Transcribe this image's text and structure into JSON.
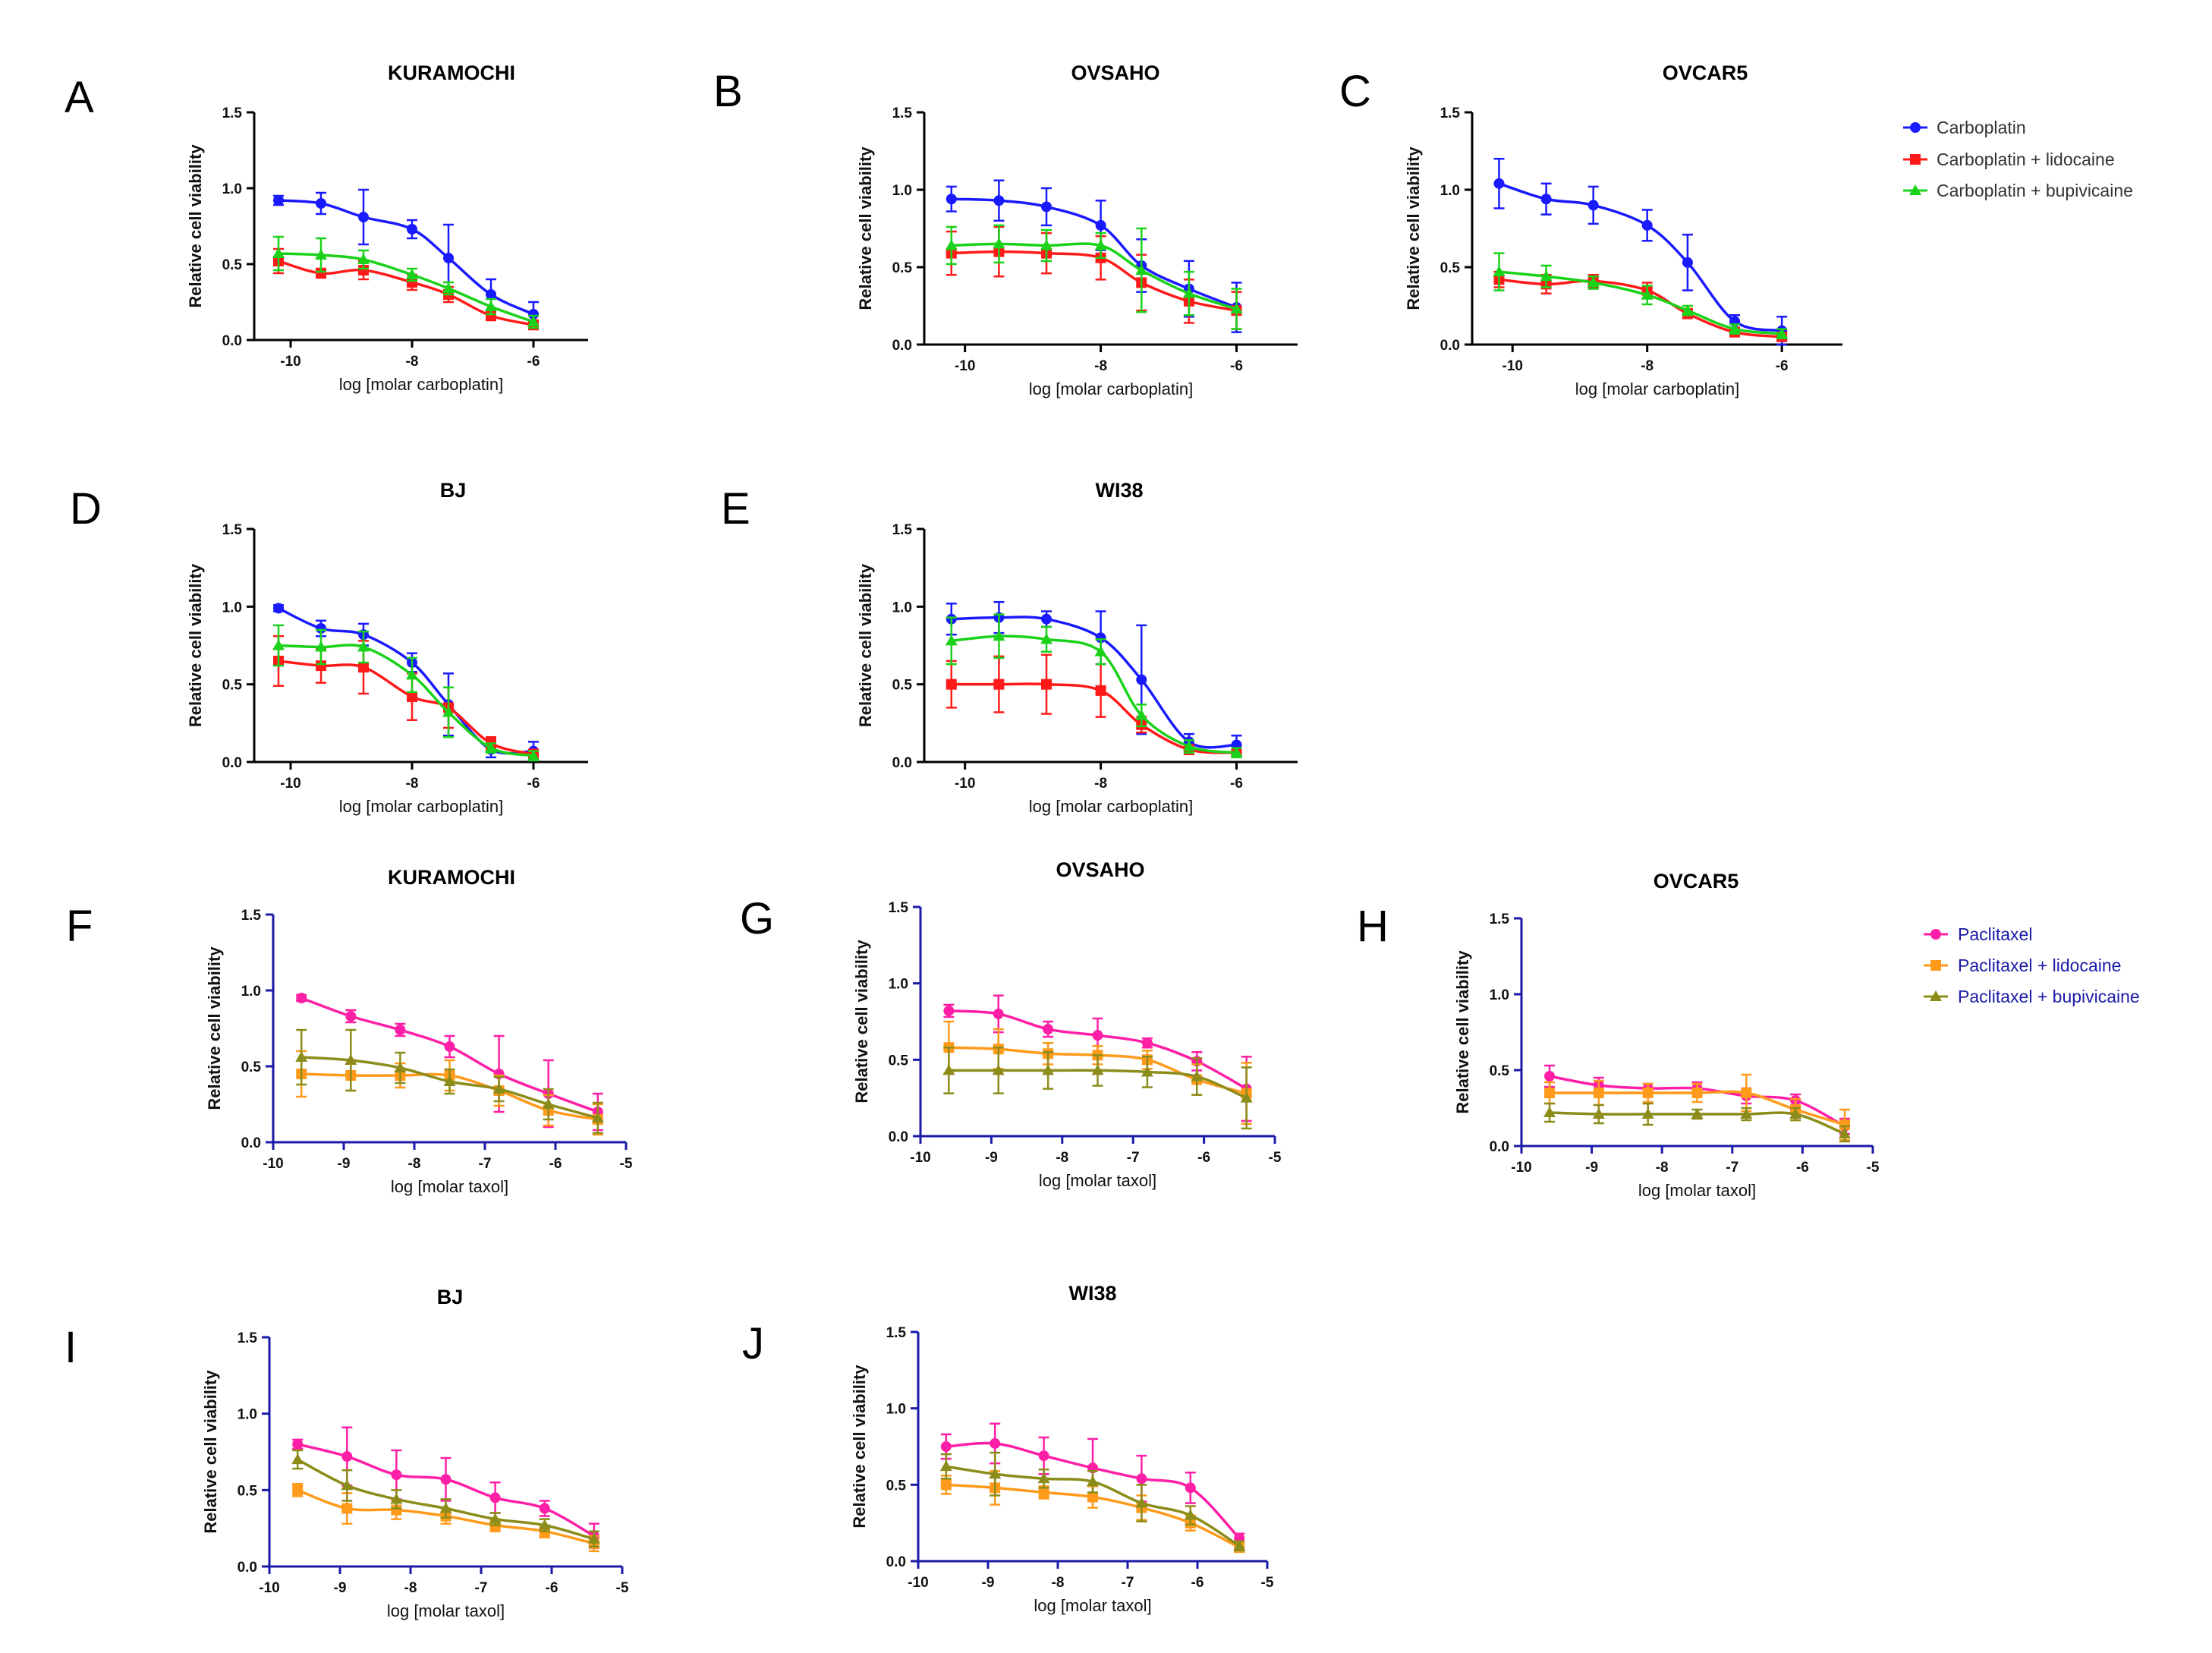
{
  "figure": {
    "legend_carboplatin": [
      {
        "name": "Carboplatin",
        "color": "#1a1aff",
        "marker": "circle"
      },
      {
        "name": "Carboplatin + lidocaine",
        "color": "#ff1a1a",
        "marker": "square"
      },
      {
        "name": "Carboplatin + bupivicaine",
        "color": "#1ad21a",
        "marker": "triangle"
      }
    ],
    "legend_paclitaxel": [
      {
        "name": "Paclitaxel",
        "color": "#ff1fa6",
        "marker": "circle"
      },
      {
        "name": "Paclitaxel + lidocaine",
        "color": "#ff9a1a",
        "marker": "square"
      },
      {
        "name": "Paclitaxel + bupivicaine",
        "color": "#8c8c1a",
        "marker": "triangle"
      }
    ],
    "legend_text_color_carboplatin": "#333333",
    "legend_text_color_paclitaxel": "#1a1aa8"
  },
  "chart_data": [
    {
      "panel": "A",
      "type": "line",
      "title": "KURAMOCHI",
      "xlabel": "log [molar carboplatin]",
      "ylabel": "Relative cell viability",
      "xlim": [
        -10.6,
        -5.1
      ],
      "ylim": [
        0,
        1.5
      ],
      "xticks": [
        -10,
        -8,
        -6
      ],
      "yticks": [
        0.0,
        0.5,
        1.0,
        1.5
      ],
      "x": [
        -10.2,
        -9.5,
        -8.8,
        -8.0,
        -7.4,
        -6.7,
        -6.0
      ],
      "series": [
        {
          "name": "Carboplatin",
          "values": [
            0.92,
            0.9,
            0.81,
            0.73,
            0.54,
            0.3,
            0.17
          ],
          "err": [
            0.03,
            0.07,
            0.18,
            0.06,
            0.22,
            0.1,
            0.08
          ]
        },
        {
          "name": "Carboplatin + lidocaine",
          "values": [
            0.52,
            0.44,
            0.46,
            0.38,
            0.3,
            0.16,
            0.1
          ],
          "err": [
            0.08,
            0.03,
            0.06,
            0.05,
            0.05,
            0.03,
            0.03
          ]
        },
        {
          "name": "Carboplatin + bupivicaine",
          "values": [
            0.57,
            0.56,
            0.53,
            0.43,
            0.34,
            0.22,
            0.12
          ],
          "err": [
            0.11,
            0.11,
            0.06,
            0.04,
            0.04,
            0.05,
            0.04
          ]
        }
      ]
    },
    {
      "panel": "B",
      "type": "line",
      "title": "OVSAHO",
      "xlabel": "log [molar carboplatin]",
      "ylabel": "Relative cell viability",
      "xlim": [
        -10.6,
        -5.1
      ],
      "ylim": [
        0,
        1.5
      ],
      "xticks": [
        -10,
        -8,
        -6
      ],
      "yticks": [
        0.0,
        0.5,
        1.0,
        1.5
      ],
      "x": [
        -10.2,
        -9.5,
        -8.8,
        -8.0,
        -7.4,
        -6.7,
        -6.0
      ],
      "series": [
        {
          "name": "Carboplatin",
          "values": [
            0.94,
            0.93,
            0.89,
            0.77,
            0.51,
            0.36,
            0.24
          ],
          "err": [
            0.08,
            0.13,
            0.12,
            0.16,
            0.17,
            0.18,
            0.16
          ]
        },
        {
          "name": "Carboplatin + lidocaine",
          "values": [
            0.59,
            0.6,
            0.59,
            0.56,
            0.4,
            0.28,
            0.22
          ],
          "err": [
            0.14,
            0.16,
            0.13,
            0.14,
            0.18,
            0.14,
            0.12
          ]
        },
        {
          "name": "Carboplatin + bupivicaine",
          "values": [
            0.64,
            0.65,
            0.64,
            0.64,
            0.48,
            0.33,
            0.23
          ],
          "err": [
            0.12,
            0.12,
            0.1,
            0.08,
            0.27,
            0.14,
            0.13
          ]
        }
      ]
    },
    {
      "panel": "C",
      "type": "line",
      "title": "OVCAR5",
      "xlabel": "log [molar carboplatin]",
      "ylabel": "Relative cell viability",
      "xlim": [
        -10.6,
        -5.1
      ],
      "ylim": [
        0,
        1.5
      ],
      "xticks": [
        -10,
        -8,
        -6
      ],
      "yticks": [
        0.0,
        0.5,
        1.0,
        1.5
      ],
      "x": [
        -10.2,
        -9.5,
        -8.8,
        -8.0,
        -7.4,
        -6.7,
        -6.0
      ],
      "series": [
        {
          "name": "Carboplatin",
          "values": [
            1.04,
            0.94,
            0.9,
            0.77,
            0.53,
            0.15,
            0.09
          ],
          "err": [
            0.16,
            0.1,
            0.12,
            0.1,
            0.18,
            0.04,
            0.09
          ]
        },
        {
          "name": "Carboplatin + lidocaine",
          "values": [
            0.42,
            0.39,
            0.41,
            0.35,
            0.2,
            0.08,
            0.05
          ],
          "err": [
            0.05,
            0.06,
            0.04,
            0.05,
            0.03,
            0.02,
            0.02
          ]
        },
        {
          "name": "Carboplatin + bupivicaine",
          "values": [
            0.47,
            0.44,
            0.4,
            0.32,
            0.22,
            0.1,
            0.07
          ],
          "err": [
            0.12,
            0.07,
            0.04,
            0.06,
            0.03,
            0.03,
            0.03
          ]
        }
      ]
    },
    {
      "panel": "D",
      "type": "line",
      "title": "BJ",
      "xlabel": "log [molar carboplatin]",
      "ylabel": "Relative cell viability",
      "xlim": [
        -10.6,
        -5.1
      ],
      "ylim": [
        0,
        1.5
      ],
      "xticks": [
        -10,
        -8,
        -6
      ],
      "yticks": [
        0.0,
        0.5,
        1.0,
        1.5
      ],
      "x": [
        -10.2,
        -9.5,
        -8.8,
        -8.0,
        -7.4,
        -6.7,
        -6.0
      ],
      "series": [
        {
          "name": "Carboplatin",
          "values": [
            0.99,
            0.86,
            0.82,
            0.64,
            0.37,
            0.08,
            0.07
          ],
          "err": [
            0.02,
            0.05,
            0.07,
            0.06,
            0.2,
            0.05,
            0.06
          ]
        },
        {
          "name": "Carboplatin + lidocaine",
          "values": [
            0.65,
            0.62,
            0.61,
            0.42,
            0.35,
            0.12,
            0.05
          ],
          "err": [
            0.16,
            0.11,
            0.17,
            0.15,
            0.13,
            0.04,
            0.03
          ]
        },
        {
          "name": "Carboplatin + bupivicaine",
          "values": [
            0.75,
            0.74,
            0.74,
            0.56,
            0.32,
            0.09,
            0.04
          ],
          "err": [
            0.13,
            0.11,
            0.1,
            0.11,
            0.16,
            0.03,
            0.03
          ]
        }
      ]
    },
    {
      "panel": "E",
      "type": "line",
      "title": "WI38",
      "xlabel": "log [molar carboplatin]",
      "ylabel": "Relative cell viability",
      "xlim": [
        -10.6,
        -5.1
      ],
      "ylim": [
        0,
        1.5
      ],
      "xticks": [
        -10,
        -8,
        -6
      ],
      "yticks": [
        0.0,
        0.5,
        1.0,
        1.5
      ],
      "x": [
        -10.2,
        -9.5,
        -8.8,
        -8.0,
        -7.4,
        -6.7,
        -6.0
      ],
      "series": [
        {
          "name": "Carboplatin",
          "values": [
            0.92,
            0.93,
            0.92,
            0.8,
            0.53,
            0.13,
            0.11
          ],
          "err": [
            0.1,
            0.1,
            0.05,
            0.17,
            0.35,
            0.05,
            0.06
          ]
        },
        {
          "name": "Carboplatin + lidocaine",
          "values": [
            0.5,
            0.5,
            0.5,
            0.46,
            0.24,
            0.08,
            0.06
          ],
          "err": [
            0.15,
            0.18,
            0.19,
            0.17,
            0.05,
            0.03,
            0.02
          ]
        },
        {
          "name": "Carboplatin + bupivicaine",
          "values": [
            0.78,
            0.81,
            0.79,
            0.71,
            0.3,
            0.1,
            0.06
          ],
          "err": [
            0.15,
            0.14,
            0.08,
            0.08,
            0.07,
            0.04,
            0.03
          ]
        }
      ]
    },
    {
      "panel": "F",
      "type": "line",
      "title": "KURAMOCHI",
      "xlabel": "log [molar taxol]",
      "ylabel": "Relative cell viability",
      "xlim": [
        -10,
        -5
      ],
      "ylim": [
        0,
        1.5
      ],
      "xticks": [
        -10,
        -9,
        -8,
        -7,
        -6,
        -5
      ],
      "yticks": [
        0.0,
        0.5,
        1.0,
        1.5
      ],
      "x": [
        -9.6,
        -8.9,
        -8.2,
        -7.5,
        -6.8,
        -6.1,
        -5.4
      ],
      "series": [
        {
          "name": "Paclitaxel",
          "values": [
            0.95,
            0.83,
            0.74,
            0.63,
            0.45,
            0.32,
            0.2
          ],
          "err": [
            0.02,
            0.04,
            0.04,
            0.07,
            0.25,
            0.22,
            0.12
          ]
        },
        {
          "name": "Paclitaxel + lidocaine",
          "values": [
            0.45,
            0.44,
            0.44,
            0.44,
            0.34,
            0.21,
            0.15
          ],
          "err": [
            0.15,
            0.1,
            0.08,
            0.1,
            0.1,
            0.1,
            0.1
          ]
        },
        {
          "name": "Paclitaxel + bupivicaine",
          "values": [
            0.56,
            0.54,
            0.49,
            0.4,
            0.35,
            0.25,
            0.16
          ],
          "err": [
            0.18,
            0.2,
            0.1,
            0.08,
            0.08,
            0.1,
            0.1
          ]
        }
      ]
    },
    {
      "panel": "G",
      "type": "line",
      "title": "OVSAHO",
      "xlabel": "log [molar taxol]",
      "ylabel": "Relative cell viability",
      "xlim": [
        -10,
        -5
      ],
      "ylim": [
        0,
        1.5
      ],
      "xticks": [
        -10,
        -9,
        -8,
        -7,
        -6,
        -5
      ],
      "yticks": [
        0.0,
        0.5,
        1.0,
        1.5
      ],
      "x": [
        -9.6,
        -8.9,
        -8.2,
        -7.5,
        -6.8,
        -6.1,
        -5.4
      ],
      "series": [
        {
          "name": "Paclitaxel",
          "values": [
            0.82,
            0.8,
            0.7,
            0.66,
            0.61,
            0.49,
            0.31
          ],
          "err": [
            0.04,
            0.12,
            0.05,
            0.11,
            0.03,
            0.06,
            0.21
          ]
        },
        {
          "name": "Paclitaxel + lidocaine",
          "values": [
            0.58,
            0.57,
            0.54,
            0.53,
            0.5,
            0.37,
            0.28
          ],
          "err": [
            0.17,
            0.13,
            0.07,
            0.06,
            0.06,
            0.1,
            0.2
          ]
        },
        {
          "name": "Paclitaxel + bupivicaine",
          "values": [
            0.43,
            0.43,
            0.43,
            0.43,
            0.42,
            0.39,
            0.25
          ],
          "err": [
            0.15,
            0.15,
            0.12,
            0.1,
            0.1,
            0.12,
            0.2
          ]
        }
      ]
    },
    {
      "panel": "H",
      "type": "line",
      "title": "OVCAR5",
      "xlabel": "log [molar taxol]",
      "ylabel": "Relative cell viability",
      "xlim": [
        -10,
        -5
      ],
      "ylim": [
        0,
        1.5
      ],
      "xticks": [
        -10,
        -9,
        -8,
        -7,
        -6,
        -5
      ],
      "yticks": [
        0.0,
        0.5,
        1.0,
        1.5
      ],
      "x": [
        -9.6,
        -8.9,
        -8.2,
        -7.5,
        -6.8,
        -6.1,
        -5.4
      ],
      "series": [
        {
          "name": "Paclitaxel",
          "values": [
            0.46,
            0.4,
            0.38,
            0.38,
            0.33,
            0.3,
            0.13
          ],
          "err": [
            0.07,
            0.05,
            0.03,
            0.04,
            0.05,
            0.04,
            0.05
          ]
        },
        {
          "name": "Paclitaxel + lidocaine",
          "values": [
            0.35,
            0.35,
            0.35,
            0.35,
            0.35,
            0.24,
            0.14
          ],
          "err": [
            0.07,
            0.08,
            0.06,
            0.06,
            0.12,
            0.07,
            0.1
          ]
        },
        {
          "name": "Paclitaxel + bupivicaine",
          "values": [
            0.22,
            0.21,
            0.21,
            0.21,
            0.21,
            0.21,
            0.08
          ],
          "err": [
            0.06,
            0.06,
            0.07,
            0.03,
            0.04,
            0.04,
            0.05
          ]
        }
      ]
    },
    {
      "panel": "I",
      "type": "line",
      "title": "BJ",
      "xlabel": "log [molar taxol]",
      "ylabel": "Relative cell viability",
      "xlim": [
        -10,
        -5
      ],
      "ylim": [
        0,
        1.5
      ],
      "xticks": [
        -10,
        -9,
        -8,
        -7,
        -6,
        -5
      ],
      "yticks": [
        0.0,
        0.5,
        1.0,
        1.5
      ],
      "x": [
        -9.6,
        -8.9,
        -8.2,
        -7.5,
        -6.8,
        -6.1,
        -5.4
      ],
      "series": [
        {
          "name": "Paclitaxel",
          "values": [
            0.8,
            0.72,
            0.6,
            0.57,
            0.45,
            0.38,
            0.2
          ],
          "err": [
            0.03,
            0.19,
            0.16,
            0.14,
            0.1,
            0.05,
            0.08
          ]
        },
        {
          "name": "Paclitaxel + lidocaine",
          "values": [
            0.5,
            0.38,
            0.37,
            0.33,
            0.27,
            0.23,
            0.15
          ],
          "err": [
            0.04,
            0.1,
            0.06,
            0.05,
            0.04,
            0.04,
            0.05
          ]
        },
        {
          "name": "Paclitaxel + bupivicaine",
          "values": [
            0.7,
            0.53,
            0.44,
            0.38,
            0.31,
            0.27,
            0.18
          ],
          "err": [
            0.06,
            0.1,
            0.06,
            0.06,
            0.04,
            0.04,
            0.05
          ]
        }
      ]
    },
    {
      "panel": "J",
      "type": "line",
      "title": "WI38",
      "xlabel": "log [molar taxol]",
      "ylabel": "Relative cell viability",
      "xlim": [
        -10,
        -5
      ],
      "ylim": [
        0,
        1.5
      ],
      "xticks": [
        -10,
        -9,
        -8,
        -7,
        -6,
        -5
      ],
      "yticks": [
        0.0,
        0.5,
        1.0,
        1.5
      ],
      "x": [
        -9.6,
        -8.9,
        -8.2,
        -7.5,
        -6.8,
        -6.1,
        -5.4
      ],
      "series": [
        {
          "name": "Paclitaxel",
          "values": [
            0.75,
            0.77,
            0.69,
            0.61,
            0.54,
            0.48,
            0.15
          ],
          "err": [
            0.08,
            0.13,
            0.12,
            0.19,
            0.15,
            0.1,
            0.03
          ]
        },
        {
          "name": "Paclitaxel + lidocaine",
          "values": [
            0.5,
            0.48,
            0.45,
            0.42,
            0.35,
            0.25,
            0.09
          ],
          "err": [
            0.06,
            0.11,
            0.04,
            0.07,
            0.08,
            0.05,
            0.03
          ]
        },
        {
          "name": "Paclitaxel + bupivicaine",
          "values": [
            0.62,
            0.57,
            0.54,
            0.52,
            0.38,
            0.3,
            0.1
          ],
          "err": [
            0.08,
            0.14,
            0.06,
            0.07,
            0.12,
            0.06,
            0.03
          ]
        }
      ]
    }
  ]
}
